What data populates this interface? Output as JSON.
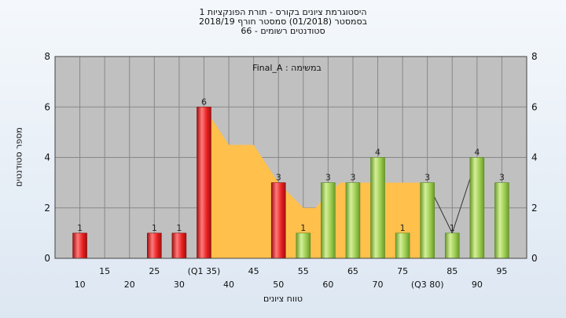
{
  "title_lines": [
    "היסטוגרמת ציונים בקורס - תורת הפונקציות 1",
    "בסמסטר  (01/2018)  סמסטר חורף 2018/19",
    "סטודנטים רשומים - 66"
  ],
  "annotation": "במשימה : Final_A",
  "colors": {
    "plot_bg": "#c0c0c0",
    "grid": "#888888",
    "area": "#ffc04c",
    "red_bar": "#e82020",
    "green_bar": "#9ccc50"
  },
  "chart_data": {
    "type": "bar",
    "xlabel": "טווח ציונים",
    "ylabel": "מספר סטודנטים",
    "ylim": [
      0,
      8
    ],
    "yticks": [
      0,
      2,
      4,
      6,
      8
    ],
    "grid": true,
    "x_ticks_row1": [
      "15",
      "25",
      "(Q1 35)",
      "45",
      "55",
      "65",
      "75",
      "85",
      "95"
    ],
    "x_ticks_row2": [
      "10",
      "20",
      "30",
      "40",
      "50",
      "60",
      "70",
      "(Q3 80)",
      "90"
    ],
    "bars": [
      {
        "x": 10,
        "value": 1,
        "color": "red"
      },
      {
        "x": 25,
        "value": 1,
        "color": "red"
      },
      {
        "x": 30,
        "value": 1,
        "color": "red"
      },
      {
        "x": 35,
        "value": 6,
        "color": "red"
      },
      {
        "x": 50,
        "value": 3,
        "color": "red"
      },
      {
        "x": 55,
        "value": 1,
        "color": "green"
      },
      {
        "x": 60,
        "value": 3,
        "color": "green"
      },
      {
        "x": 65,
        "value": 3,
        "color": "green"
      },
      {
        "x": 70,
        "value": 4,
        "color": "green"
      },
      {
        "x": 75,
        "value": 1,
        "color": "green"
      },
      {
        "x": 80,
        "value": 3,
        "color": "green"
      },
      {
        "x": 85,
        "value": 1,
        "color": "green"
      },
      {
        "x": 90,
        "value": 4,
        "color": "green"
      },
      {
        "x": 95,
        "value": 3,
        "color": "green"
      }
    ],
    "area_points": [
      [
        35,
        6
      ],
      [
        40,
        4.5
      ],
      [
        45,
        4.5
      ],
      [
        50,
        3
      ],
      [
        55,
        2
      ],
      [
        57.5,
        2
      ],
      [
        60,
        2.6
      ],
      [
        62.5,
        3
      ],
      [
        65,
        3
      ],
      [
        70,
        3
      ],
      [
        75,
        3
      ],
      [
        80,
        3
      ]
    ],
    "trend_line": [
      [
        80,
        3
      ],
      [
        85,
        1
      ],
      [
        90,
        4
      ]
    ]
  }
}
